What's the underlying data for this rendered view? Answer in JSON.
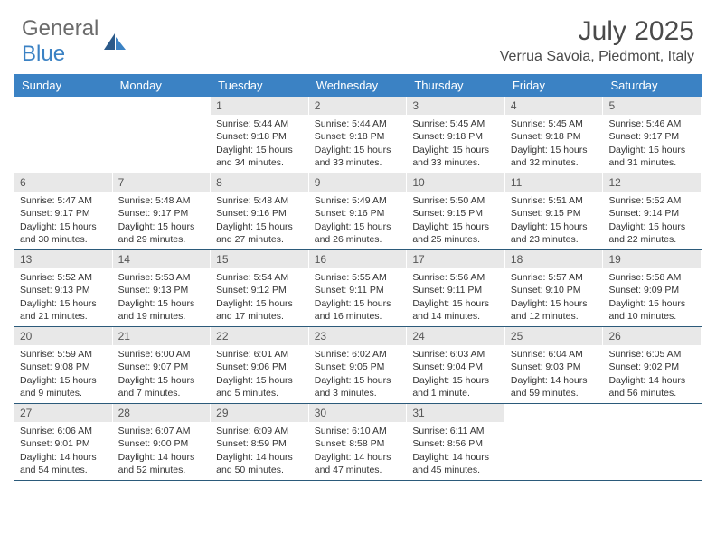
{
  "logo": {
    "word1": "General",
    "word2": "Blue"
  },
  "title": "July 2025",
  "location": "Verrua Savoia, Piedmont, Italy",
  "colors": {
    "header_bg": "#3b82c4",
    "header_text": "#ffffff",
    "daynum_bg": "#e8e8e8",
    "rule": "#2b5a7a",
    "logo_gray": "#6b6b6b",
    "logo_blue": "#3b82c4",
    "text": "#333333"
  },
  "weekdays": [
    "Sunday",
    "Monday",
    "Tuesday",
    "Wednesday",
    "Thursday",
    "Friday",
    "Saturday"
  ],
  "weeks": [
    [
      null,
      null,
      {
        "n": "1",
        "sr": "Sunrise: 5:44 AM",
        "ss": "Sunset: 9:18 PM",
        "dl1": "Daylight: 15 hours",
        "dl2": "and 34 minutes."
      },
      {
        "n": "2",
        "sr": "Sunrise: 5:44 AM",
        "ss": "Sunset: 9:18 PM",
        "dl1": "Daylight: 15 hours",
        "dl2": "and 33 minutes."
      },
      {
        "n": "3",
        "sr": "Sunrise: 5:45 AM",
        "ss": "Sunset: 9:18 PM",
        "dl1": "Daylight: 15 hours",
        "dl2": "and 33 minutes."
      },
      {
        "n": "4",
        "sr": "Sunrise: 5:45 AM",
        "ss": "Sunset: 9:18 PM",
        "dl1": "Daylight: 15 hours",
        "dl2": "and 32 minutes."
      },
      {
        "n": "5",
        "sr": "Sunrise: 5:46 AM",
        "ss": "Sunset: 9:17 PM",
        "dl1": "Daylight: 15 hours",
        "dl2": "and 31 minutes."
      }
    ],
    [
      {
        "n": "6",
        "sr": "Sunrise: 5:47 AM",
        "ss": "Sunset: 9:17 PM",
        "dl1": "Daylight: 15 hours",
        "dl2": "and 30 minutes."
      },
      {
        "n": "7",
        "sr": "Sunrise: 5:48 AM",
        "ss": "Sunset: 9:17 PM",
        "dl1": "Daylight: 15 hours",
        "dl2": "and 29 minutes."
      },
      {
        "n": "8",
        "sr": "Sunrise: 5:48 AM",
        "ss": "Sunset: 9:16 PM",
        "dl1": "Daylight: 15 hours",
        "dl2": "and 27 minutes."
      },
      {
        "n": "9",
        "sr": "Sunrise: 5:49 AM",
        "ss": "Sunset: 9:16 PM",
        "dl1": "Daylight: 15 hours",
        "dl2": "and 26 minutes."
      },
      {
        "n": "10",
        "sr": "Sunrise: 5:50 AM",
        "ss": "Sunset: 9:15 PM",
        "dl1": "Daylight: 15 hours",
        "dl2": "and 25 minutes."
      },
      {
        "n": "11",
        "sr": "Sunrise: 5:51 AM",
        "ss": "Sunset: 9:15 PM",
        "dl1": "Daylight: 15 hours",
        "dl2": "and 23 minutes."
      },
      {
        "n": "12",
        "sr": "Sunrise: 5:52 AM",
        "ss": "Sunset: 9:14 PM",
        "dl1": "Daylight: 15 hours",
        "dl2": "and 22 minutes."
      }
    ],
    [
      {
        "n": "13",
        "sr": "Sunrise: 5:52 AM",
        "ss": "Sunset: 9:13 PM",
        "dl1": "Daylight: 15 hours",
        "dl2": "and 21 minutes."
      },
      {
        "n": "14",
        "sr": "Sunrise: 5:53 AM",
        "ss": "Sunset: 9:13 PM",
        "dl1": "Daylight: 15 hours",
        "dl2": "and 19 minutes."
      },
      {
        "n": "15",
        "sr": "Sunrise: 5:54 AM",
        "ss": "Sunset: 9:12 PM",
        "dl1": "Daylight: 15 hours",
        "dl2": "and 17 minutes."
      },
      {
        "n": "16",
        "sr": "Sunrise: 5:55 AM",
        "ss": "Sunset: 9:11 PM",
        "dl1": "Daylight: 15 hours",
        "dl2": "and 16 minutes."
      },
      {
        "n": "17",
        "sr": "Sunrise: 5:56 AM",
        "ss": "Sunset: 9:11 PM",
        "dl1": "Daylight: 15 hours",
        "dl2": "and 14 minutes."
      },
      {
        "n": "18",
        "sr": "Sunrise: 5:57 AM",
        "ss": "Sunset: 9:10 PM",
        "dl1": "Daylight: 15 hours",
        "dl2": "and 12 minutes."
      },
      {
        "n": "19",
        "sr": "Sunrise: 5:58 AM",
        "ss": "Sunset: 9:09 PM",
        "dl1": "Daylight: 15 hours",
        "dl2": "and 10 minutes."
      }
    ],
    [
      {
        "n": "20",
        "sr": "Sunrise: 5:59 AM",
        "ss": "Sunset: 9:08 PM",
        "dl1": "Daylight: 15 hours",
        "dl2": "and 9 minutes."
      },
      {
        "n": "21",
        "sr": "Sunrise: 6:00 AM",
        "ss": "Sunset: 9:07 PM",
        "dl1": "Daylight: 15 hours",
        "dl2": "and 7 minutes."
      },
      {
        "n": "22",
        "sr": "Sunrise: 6:01 AM",
        "ss": "Sunset: 9:06 PM",
        "dl1": "Daylight: 15 hours",
        "dl2": "and 5 minutes."
      },
      {
        "n": "23",
        "sr": "Sunrise: 6:02 AM",
        "ss": "Sunset: 9:05 PM",
        "dl1": "Daylight: 15 hours",
        "dl2": "and 3 minutes."
      },
      {
        "n": "24",
        "sr": "Sunrise: 6:03 AM",
        "ss": "Sunset: 9:04 PM",
        "dl1": "Daylight: 15 hours",
        "dl2": "and 1 minute."
      },
      {
        "n": "25",
        "sr": "Sunrise: 6:04 AM",
        "ss": "Sunset: 9:03 PM",
        "dl1": "Daylight: 14 hours",
        "dl2": "and 59 minutes."
      },
      {
        "n": "26",
        "sr": "Sunrise: 6:05 AM",
        "ss": "Sunset: 9:02 PM",
        "dl1": "Daylight: 14 hours",
        "dl2": "and 56 minutes."
      }
    ],
    [
      {
        "n": "27",
        "sr": "Sunrise: 6:06 AM",
        "ss": "Sunset: 9:01 PM",
        "dl1": "Daylight: 14 hours",
        "dl2": "and 54 minutes."
      },
      {
        "n": "28",
        "sr": "Sunrise: 6:07 AM",
        "ss": "Sunset: 9:00 PM",
        "dl1": "Daylight: 14 hours",
        "dl2": "and 52 minutes."
      },
      {
        "n": "29",
        "sr": "Sunrise: 6:09 AM",
        "ss": "Sunset: 8:59 PM",
        "dl1": "Daylight: 14 hours",
        "dl2": "and 50 minutes."
      },
      {
        "n": "30",
        "sr": "Sunrise: 6:10 AM",
        "ss": "Sunset: 8:58 PM",
        "dl1": "Daylight: 14 hours",
        "dl2": "and 47 minutes."
      },
      {
        "n": "31",
        "sr": "Sunrise: 6:11 AM",
        "ss": "Sunset: 8:56 PM",
        "dl1": "Daylight: 14 hours",
        "dl2": "and 45 minutes."
      },
      null,
      null
    ]
  ]
}
